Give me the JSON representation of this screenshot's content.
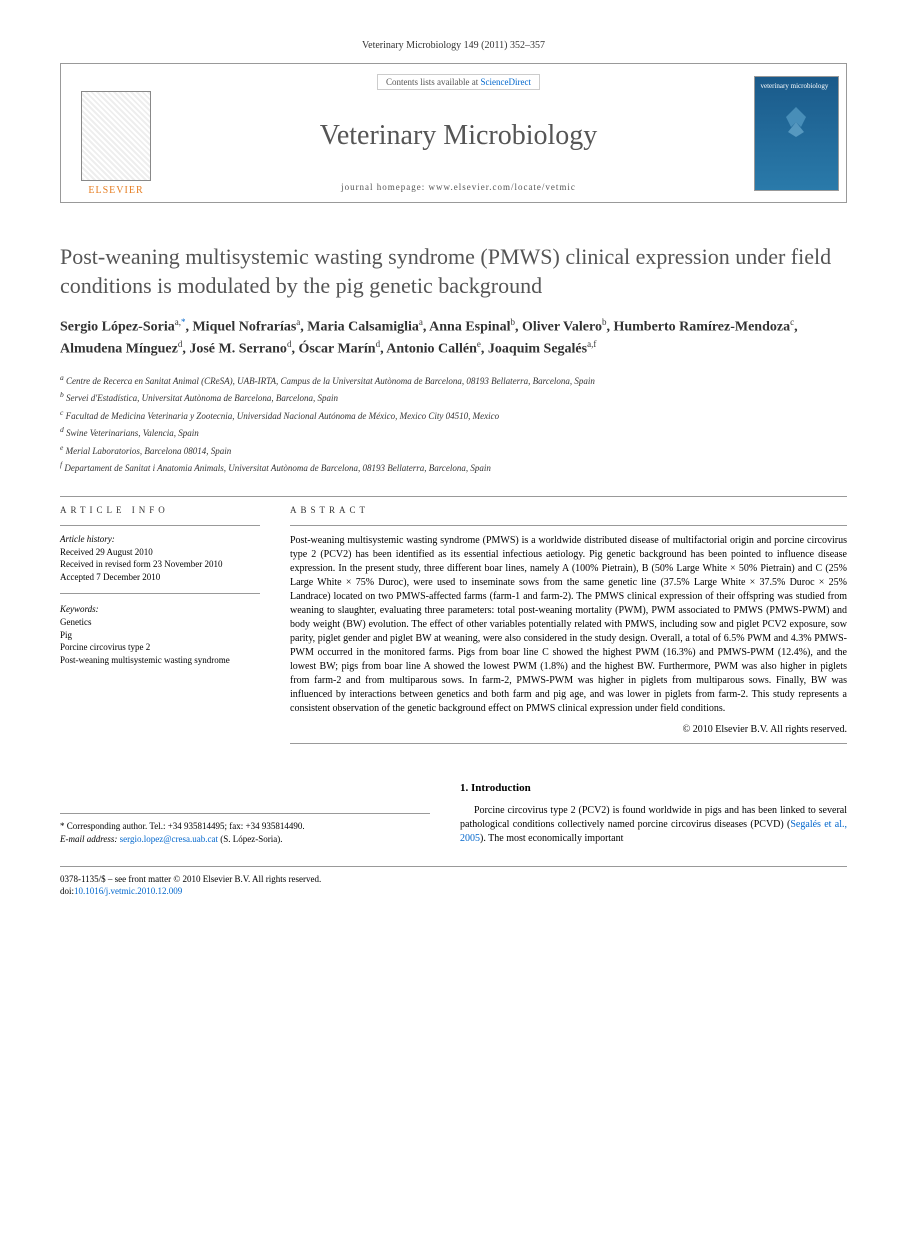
{
  "header": {
    "citation": "Veterinary Microbiology 149 (2011) 352–357"
  },
  "banner": {
    "elsevier": "ELSEVIER",
    "contents_prefix": "Contents lists available at ",
    "contents_link": "ScienceDirect",
    "journal": "Veterinary Microbiology",
    "homepage_label": "journal homepage: ",
    "homepage_url": "www.elsevier.com/locate/vetmic",
    "cover_title": "veterinary microbiology"
  },
  "title": "Post-weaning multisystemic wasting syndrome (PMWS) clinical expression under field conditions is modulated by the pig genetic background",
  "authors_html": "Sergio López-Soria<sup>a,</sup><sup class='corr'>*</sup>, Miquel Nofrarías<sup>a</sup>, Maria Calsamiglia<sup>a</sup>, Anna Espinal<sup>b</sup>, Oliver Valero<sup>b</sup>, Humberto Ramírez-Mendoza<sup>c</sup>, Almudena Mínguez<sup>d</sup>, José M. Serrano<sup>d</sup>, Óscar Marín<sup>d</sup>, Antonio Callén<sup>e</sup>, Joaquim Segalés<sup>a,f</sup>",
  "affiliations": [
    "a Centre de Recerca en Sanitat Animal (CReSA), UAB-IRTA, Campus de la Universitat Autònoma de Barcelona, 08193 Bellaterra, Barcelona, Spain",
    "b Servei d'Estadística, Universitat Autònoma de Barcelona, Barcelona, Spain",
    "c Facultad de Medicina Veterinaria y Zootecnia, Universidad Nacional Autónoma de México, Mexico City 04510, Mexico",
    "d Swine Veterinarians, Valencia, Spain",
    "e Merial Laboratorios, Barcelona 08014, Spain",
    "f Departament de Sanitat i Anatomia Animals, Universitat Autònoma de Barcelona, 08193 Bellaterra, Barcelona, Spain"
  ],
  "article_info": {
    "label": "ARTICLE INFO",
    "history_heading": "Article history:",
    "history": [
      "Received 29 August 2010",
      "Received in revised form 23 November 2010",
      "Accepted 7 December 2010"
    ],
    "keywords_heading": "Keywords:",
    "keywords": [
      "Genetics",
      "Pig",
      "Porcine circovirus type 2",
      "Post-weaning multisystemic wasting syndrome"
    ]
  },
  "abstract": {
    "label": "ABSTRACT",
    "text": "Post-weaning multisystemic wasting syndrome (PMWS) is a worldwide distributed disease of multifactorial origin and porcine circovirus type 2 (PCV2) has been identified as its essential infectious aetiology. Pig genetic background has been pointed to influence disease expression. In the present study, three different boar lines, namely A (100% Pietrain), B (50% Large White × 50% Pietrain) and C (25% Large White × 75% Duroc), were used to inseminate sows from the same genetic line (37.5% Large White × 37.5% Duroc × 25% Landrace) located on two PMWS-affected farms (farm-1 and farm-2). The PMWS clinical expression of their offspring was studied from weaning to slaughter, evaluating three parameters: total post-weaning mortality (PWM), PWM associated to PMWS (PMWS-PWM) and body weight (BW) evolution. The effect of other variables potentially related with PMWS, including sow and piglet PCV2 exposure, sow parity, piglet gender and piglet BW at weaning, were also considered in the study design. Overall, a total of 6.5% PWM and 4.3% PMWS-PWM occurred in the monitored farms. Pigs from boar line C showed the highest PWM (16.3%) and PMWS-PWM (12.4%), and the lowest BW; pigs from boar line A showed the lowest PWM (1.8%) and the highest BW. Furthermore, PWM was also higher in piglets from farm-2 and from multiparous sows. In farm-2, PMWS-PWM was higher in piglets from multiparous sows. Finally, BW was influenced by interactions between genetics and both farm and pig age, and was lower in piglets from farm-2. This study represents a consistent observation of the genetic background effect on PMWS clinical expression under field conditions.",
    "copyright": "© 2010 Elsevier B.V. All rights reserved."
  },
  "intro": {
    "heading": "1. Introduction",
    "text_before_cite": "Porcine circovirus type 2 (PCV2) is found worldwide in pigs and has been linked to several pathological conditions collectively named porcine circovirus diseases (PCVD) (",
    "cite": "Segalés et al., 2005",
    "text_after_cite": "). The most economically important"
  },
  "correspondence": {
    "line1": "* Corresponding author. Tel.: +34 935814495; fax: +34 935814490.",
    "email_label": "E-mail address: ",
    "email": "sergio.lopez@cresa.uab.cat",
    "email_suffix": " (S. López-Soria)."
  },
  "footer": {
    "line1": "0378-1135/$ – see front matter © 2010 Elsevier B.V. All rights reserved.",
    "doi_label": "doi:",
    "doi": "10.1016/j.vetmic.2010.12.009"
  },
  "colors": {
    "link": "#0066cc",
    "orange": "#e67e22",
    "title_gray": "#555555"
  }
}
